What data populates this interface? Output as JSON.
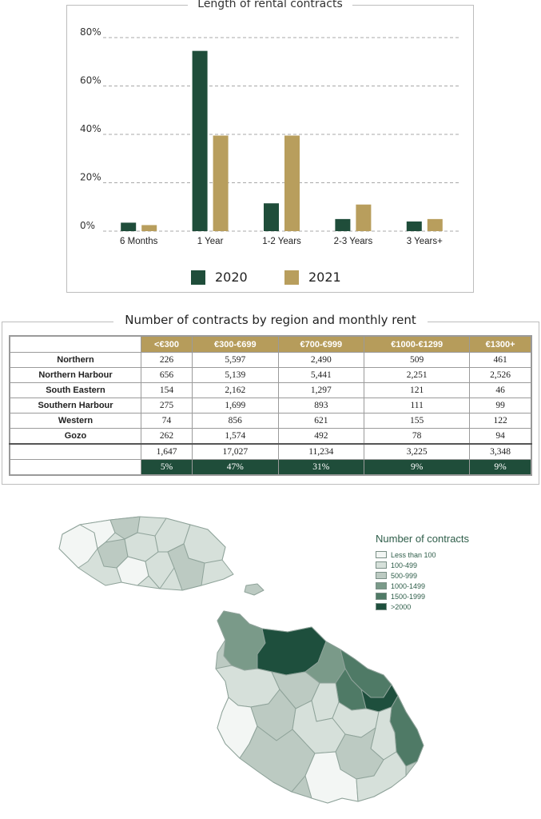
{
  "chart_data": {
    "type": "bar",
    "title": "Length of rental contracts",
    "categories": [
      "6 Months",
      "1 Year",
      "1-2 Years",
      "2-3 Years",
      "3 Years+"
    ],
    "series": [
      {
        "name": "2020",
        "color": "#1f4d3a",
        "values": [
          3.5,
          74.5,
          11.5,
          5,
          4
        ]
      },
      {
        "name": "2021",
        "color": "#b89e5d",
        "values": [
          2.5,
          39.5,
          39.5,
          11,
          5
        ]
      }
    ],
    "ylim": [
      0,
      80
    ],
    "yticks": [
      0,
      20,
      40,
      60,
      80
    ],
    "ytick_labels": [
      "0%",
      "20%",
      "40%",
      "60%",
      "80%"
    ],
    "grid": true,
    "legend_position": "bottom"
  },
  "table": {
    "title": "Number of contracts by region and monthly rent",
    "header_color": "#b69c5b",
    "columns": [
      "<€300",
      "€300-€699",
      "€700-€999",
      "€1000-€1299",
      "€1300+"
    ],
    "rows": [
      {
        "region": "Northern",
        "values": [
          "226",
          "5,597",
          "2,490",
          "509",
          "461"
        ]
      },
      {
        "region": "Northern Harbour",
        "values": [
          "656",
          "5,139",
          "5,441",
          "2,251",
          "2,526"
        ]
      },
      {
        "region": "South Eastern",
        "values": [
          "154",
          "2,162",
          "1,297",
          "121",
          "46"
        ]
      },
      {
        "region": "Southern Harbour",
        "values": [
          "275",
          "1,699",
          "893",
          "111",
          "99"
        ]
      },
      {
        "region": "Western",
        "values": [
          "74",
          "856",
          "621",
          "155",
          "122"
        ]
      },
      {
        "region": "Gozo",
        "values": [
          "262",
          "1,574",
          "492",
          "78",
          "94"
        ]
      }
    ],
    "totals": [
      "1,647",
      "17,027",
      "11,234",
      "3,225",
      "3,348"
    ],
    "percentages": [
      "5%",
      "47%",
      "31%",
      "9%",
      "9%"
    ]
  },
  "map": {
    "legend_title": "Number of contracts",
    "legend": [
      {
        "label": "Less than 100",
        "color": "#f3f6f4"
      },
      {
        "label": "100-499",
        "color": "#d6e0da"
      },
      {
        "label": "500-999",
        "color": "#bccac2"
      },
      {
        "label": "1000-1499",
        "color": "#7a9a89"
      },
      {
        "label": "1500-1999",
        "color": "#4f7a66"
      },
      {
        "label": ">2000",
        "color": "#1e4f3d"
      }
    ]
  }
}
